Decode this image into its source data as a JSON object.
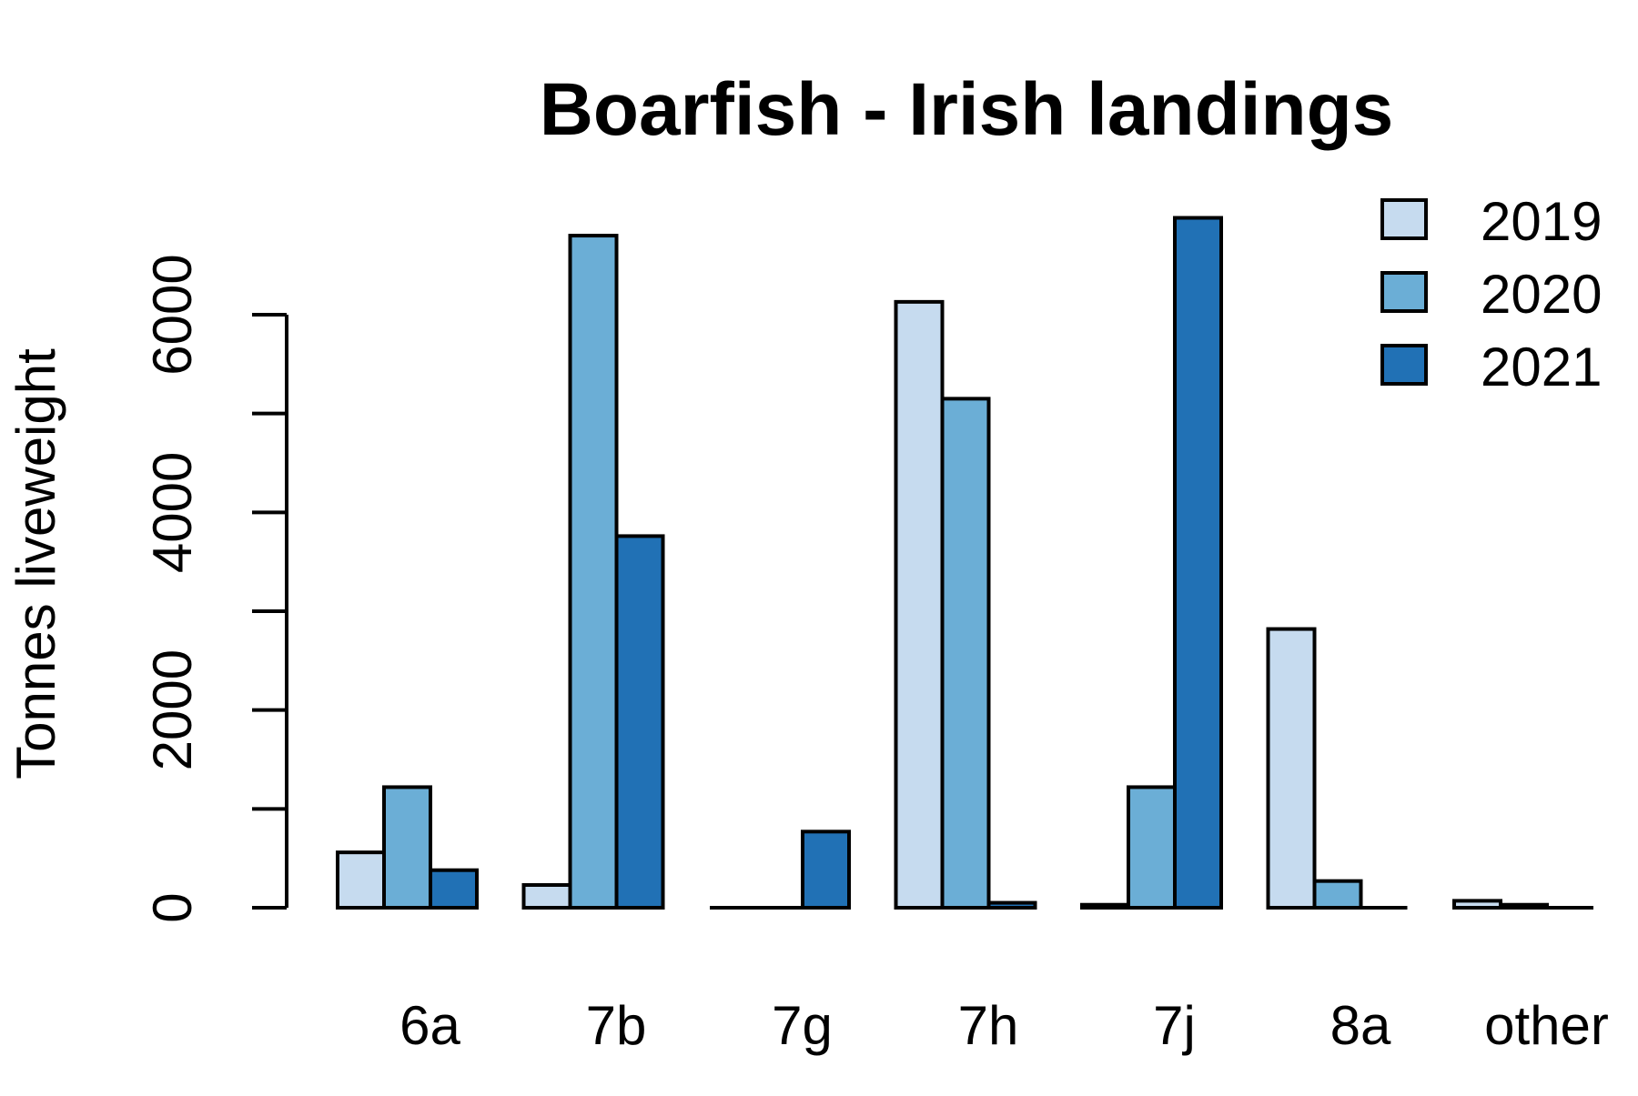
{
  "chart_data": {
    "type": "bar",
    "title": "Boarfish - Irish landings",
    "xlabel": "",
    "ylabel": "Tonnes liveweight",
    "categories": [
      "6a",
      "7b",
      "7g",
      "7h",
      "7j",
      "8a",
      "other"
    ],
    "series": [
      {
        "name": "2019",
        "color": "#c6dbef",
        "values": [
          560,
          230,
          0,
          6130,
          30,
          2820,
          70
        ]
      },
      {
        "name": "2020",
        "color": "#6baed6",
        "values": [
          1220,
          6800,
          0,
          5150,
          1220,
          270,
          30
        ]
      },
      {
        "name": "2021",
        "color": "#2171b5",
        "values": [
          380,
          3760,
          770,
          50,
          6980,
          0,
          0
        ]
      }
    ],
    "yticks": [
      0,
      2000,
      4000,
      6000
    ],
    "ylim": [
      0,
      7000
    ],
    "grid": false,
    "legend_position": "top-right"
  }
}
